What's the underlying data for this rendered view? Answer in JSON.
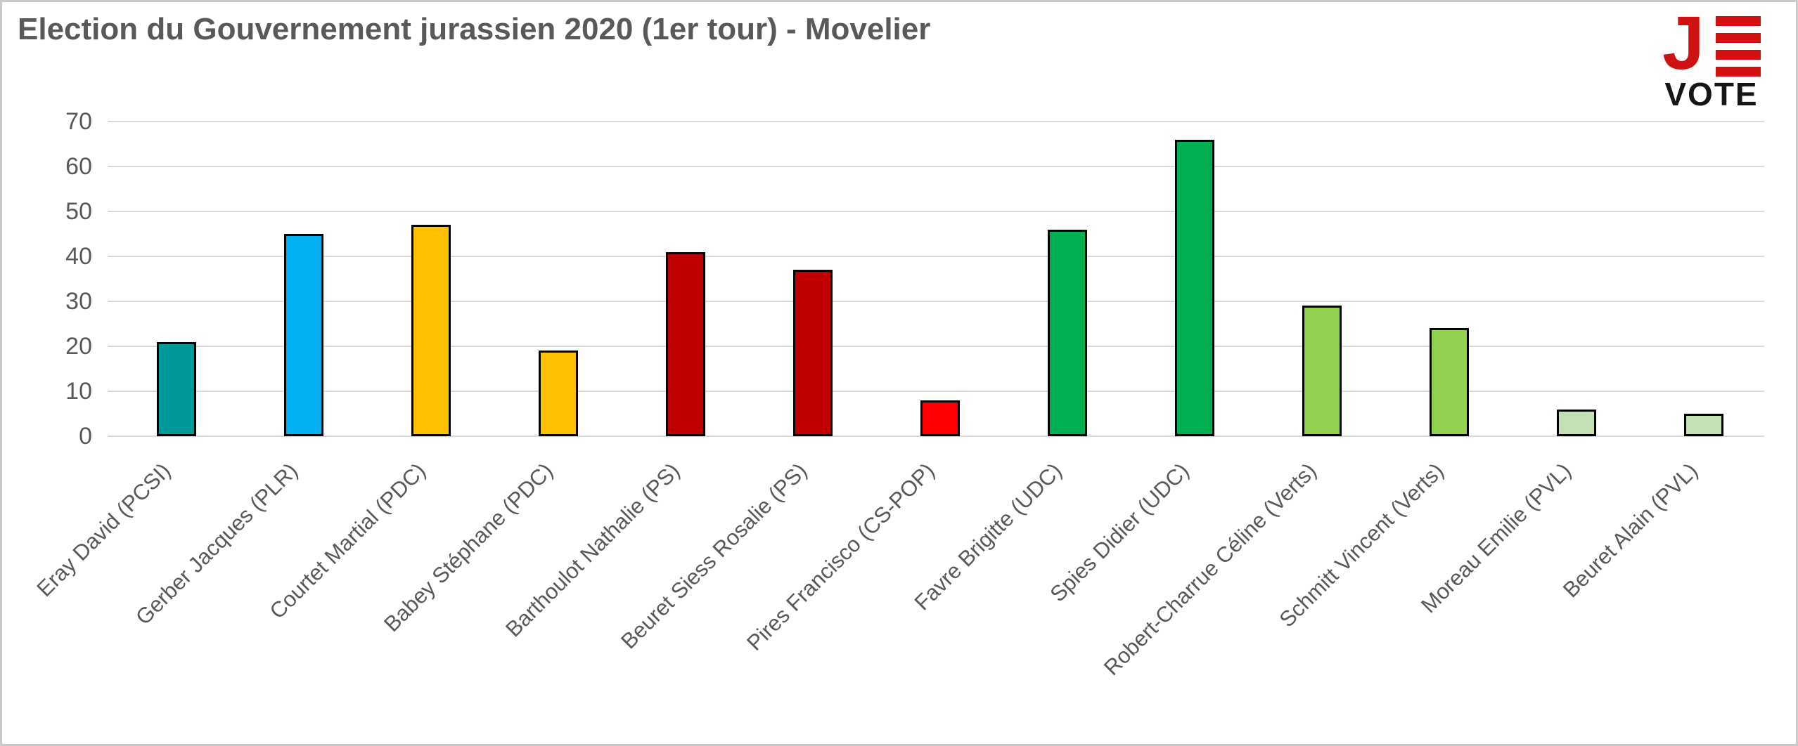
{
  "header": {
    "title": "Election du Gouvernement jurassien 2020 (1er tour) - Movelier"
  },
  "logo": {
    "j_letter": "J",
    "vote_label": "VOTE",
    "red": "#ce1111",
    "black": "#161616"
  },
  "chart_data": {
    "type": "bar",
    "title": "Election du Gouvernement jurassien 2020 (1er tour) - Movelier",
    "categories": [
      "Eray David (PCSI)",
      "Gerber Jacques (PLR)",
      "Courtet Martial (PDC)",
      "Babey Stéphane (PDC)",
      "Barthoulot Nathalie (PS)",
      "Beuret Siess Rosalie (PS)",
      "Pires Francisco (CS-POP)",
      "Favre Brigitte (UDC)",
      "Spies Didier (UDC)",
      "Robert-Charrue Céline (Verts)",
      "Schmitt Vincent (Verts)",
      "Moreau Emilie (PVL)",
      "Beuret Alain (PVL)"
    ],
    "values": [
      21,
      45,
      47,
      19,
      41,
      37,
      8,
      46,
      66,
      29,
      24,
      6,
      5
    ],
    "bar_colors": [
      "#009999",
      "#00b0f0",
      "#ffc000",
      "#ffc000",
      "#c00000",
      "#c00000",
      "#ff0000",
      "#00b050",
      "#00b050",
      "#92d050",
      "#92d050",
      "#c5e0b4",
      "#c5e0b4"
    ],
    "xlabel": "",
    "ylabel": "",
    "ylim": [
      0,
      70
    ],
    "yticks": [
      0,
      10,
      20,
      30,
      40,
      50,
      60,
      70
    ],
    "grid": true,
    "gridline_color": "#d9d9d9",
    "bar_border_color": "#000000",
    "axis_text_color": "#595959",
    "legend": "none"
  }
}
